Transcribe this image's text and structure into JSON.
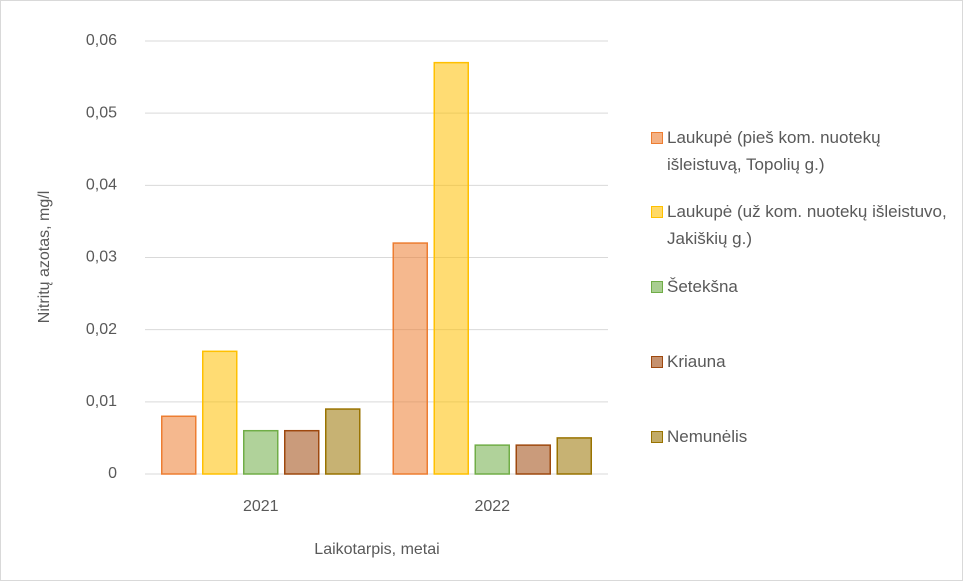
{
  "chart_data": {
    "type": "bar",
    "categories": [
      "2021",
      "2022"
    ],
    "series": [
      {
        "name": "Laukupė (pieš kom. nuotekų išleistuvą, Topolių g.)",
        "color": "#ed7d31",
        "values": [
          0.008,
          0.032
        ]
      },
      {
        "name": "Laukupė (už kom. nuotekų išleistuvo, Jakiškių g.)",
        "color": "#ffc000",
        "values": [
          0.017,
          0.057
        ]
      },
      {
        "name": "Šetekšna",
        "color": "#70ad47",
        "values": [
          0.006,
          0.004
        ]
      },
      {
        "name": "Kriauna",
        "color": "#9e480e",
        "values": [
          0.006,
          0.004
        ]
      },
      {
        "name": "Nemunėlis",
        "color": "#997300",
        "values": [
          0.009,
          0.005
        ]
      }
    ],
    "ylim": [
      0,
      0.06
    ],
    "yticks": [
      0,
      {
        "value": 0.01,
        "label": "0,01"
      },
      {
        "value": 0.02,
        "label": "0,02"
      },
      {
        "value": 0.03,
        "label": "0,03"
      },
      {
        "value": 0.04,
        "label": "0,04"
      },
      {
        "value": 0.05,
        "label": "0,05"
      },
      {
        "value": 0.06,
        "label": "0,06"
      }
    ],
    "y_label": "Nitritų azotas, mg/l",
    "x_label": "Laikotarpis, metai",
    "grid": true,
    "legend": "right"
  }
}
